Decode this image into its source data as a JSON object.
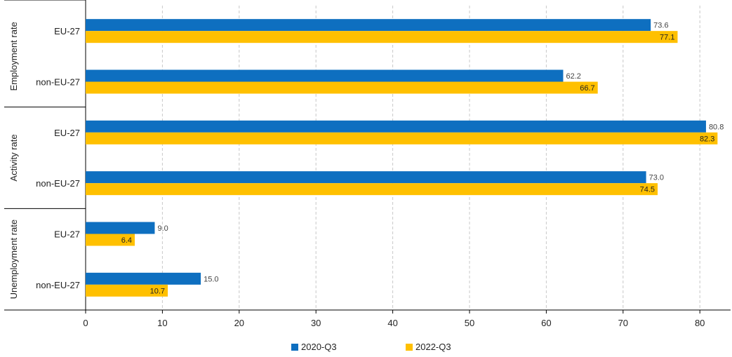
{
  "chart_data": {
    "type": "bar",
    "orientation": "horizontal",
    "groups": [
      {
        "name": "Employment rate",
        "categories": [
          "EU-27",
          "non-EU-27"
        ]
      },
      {
        "name": "Activity rate",
        "categories": [
          "EU-27",
          "non-EU-27"
        ]
      },
      {
        "name": "Unemployment rate",
        "categories": [
          "EU-27",
          "non-EU-27"
        ]
      }
    ],
    "series": [
      {
        "name": "2020-Q3",
        "color": "#0e6fc0",
        "values": [
          73.6,
          62.2,
          80.8,
          73.0,
          9.0,
          15.0
        ],
        "labels": [
          "73.6",
          "62.2",
          "80.8",
          "73.0",
          "9.0",
          "15.0"
        ]
      },
      {
        "name": "2022-Q3",
        "color": "#ffc000",
        "values": [
          77.1,
          66.7,
          82.3,
          74.5,
          6.4,
          10.7
        ],
        "labels": [
          "77.1",
          "66.7",
          "82.3",
          "74.5",
          "6.4",
          "10.7"
        ]
      }
    ],
    "xlim": [
      0,
      84
    ],
    "xticks": [
      0,
      10,
      20,
      30,
      40,
      50,
      60,
      70,
      80
    ],
    "grid": "vertical dashed",
    "legend_position": "bottom"
  }
}
